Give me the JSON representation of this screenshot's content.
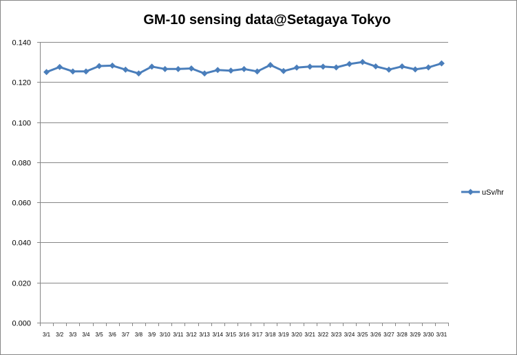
{
  "chart_data": {
    "type": "line",
    "title": "GM-10 sensing data@Setagaya Tokyo",
    "xlabel": "",
    "ylabel": "",
    "ylim": [
      0,
      0.14
    ],
    "yticks": [
      "0.000",
      "0.020",
      "0.040",
      "0.060",
      "0.080",
      "0.100",
      "0.120",
      "0.140"
    ],
    "categories": [
      "3/1",
      "3/2",
      "3/3",
      "3/4",
      "3/5",
      "3/6",
      "3/7",
      "3/8",
      "3/9",
      "3/10",
      "3/11",
      "3/12",
      "3/13",
      "3/14",
      "3/15",
      "3/16",
      "3/17",
      "3/18",
      "3/19",
      "3/20",
      "3/21",
      "3/22",
      "3/23",
      "3/24",
      "3/25",
      "3/26",
      "3/27",
      "3/28",
      "3/29",
      "3/30",
      "3/31"
    ],
    "series": [
      {
        "name": "uSv/hr",
        "values": [
          0.125,
          0.1275,
          0.1253,
          0.1253,
          0.128,
          0.1282,
          0.1262,
          0.1243,
          0.1277,
          0.1265,
          0.1265,
          0.1268,
          0.1243,
          0.126,
          0.1257,
          0.1265,
          0.1253,
          0.1285,
          0.1255,
          0.1272,
          0.1277,
          0.1277,
          0.1273,
          0.129,
          0.13,
          0.1278,
          0.1262,
          0.1278,
          0.1263,
          0.1273,
          0.1293
        ]
      }
    ],
    "grid": true,
    "legend_position": "right",
    "colors": {
      "series": "#4a7ebb",
      "grid": "#868686",
      "axis": "#868686"
    }
  }
}
